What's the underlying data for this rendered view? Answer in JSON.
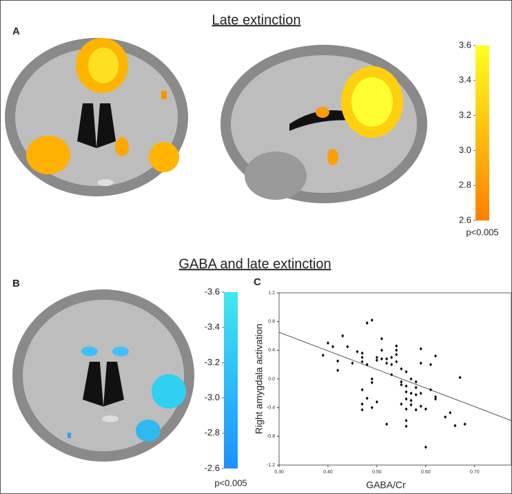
{
  "panel_a": {
    "label": "A",
    "title": "Late extinction",
    "colorbar": {
      "range": [
        2.6,
        3.6
      ],
      "colors": [
        "#ff7f00",
        "#ffff20"
      ],
      "ticks": [
        2.6,
        2.8,
        {
          "value": 3,
          "label": "3.0"
        },
        3.2,
        3.4,
        3.6
      ],
      "note": "p<0.005"
    }
  },
  "panel_b": {
    "label": "B",
    "title": "GABA and late extinction",
    "colorbar": {
      "range": [
        -2.6,
        -3.6
      ],
      "colors": [
        "#1e90ff",
        "#40e8f0"
      ],
      "ticks": [
        -2.6,
        -2.8,
        {
          "value": -3,
          "label": "-3.0"
        },
        -3.2,
        -3.4,
        -3.6
      ],
      "note": "p<0.005"
    }
  },
  "panel_c": {
    "label": "C"
  },
  "chart_data": {
    "type": "scatter",
    "x_label": "GABA/Cr",
    "y_label": "Right amygdala activation",
    "xlim": [
      0.3,
      0.775
    ],
    "ylim": [
      -1.2,
      1.2
    ],
    "xticks": [
      {
        "value": 0.3,
        "label": "0.30"
      },
      {
        "value": 0.4,
        "label": "0.40"
      },
      {
        "value": 0.5,
        "label": "0.50"
      },
      {
        "value": 0.6,
        "label": "0.60"
      },
      {
        "value": 0.7,
        "label": "0.70"
      }
    ],
    "yticks": [
      -1.2,
      -0.8,
      -0.4,
      {
        "value": 0,
        "label": "0.0"
      },
      0.4,
      0.8,
      1.2
    ],
    "color": "#000000",
    "fit_line": {
      "x": [
        0.3,
        0.775
      ],
      "y": [
        0.65,
        -0.58
      ]
    },
    "x": [
      0.39,
      0.4,
      0.41,
      0.42,
      0.42,
      0.43,
      0.44,
      0.45,
      0.46,
      0.47,
      0.47,
      0.47,
      0.48,
      0.48,
      0.49,
      0.49,
      0.49,
      0.47,
      0.47,
      0.47,
      0.48,
      0.49,
      0.5,
      0.5,
      0.5,
      0.51,
      0.51,
      0.51,
      0.52,
      0.52,
      0.52,
      0.53,
      0.53,
      0.53,
      0.54,
      0.54,
      0.54,
      0.54,
      0.55,
      0.55,
      0.55,
      0.55,
      0.56,
      0.56,
      0.56,
      0.56,
      0.56,
      0.56,
      0.56,
      0.57,
      0.57,
      0.57,
      0.57,
      0.58,
      0.58,
      0.58,
      0.58,
      0.59,
      0.59,
      0.59,
      0.59,
      0.6,
      0.6,
      0.61,
      0.61,
      0.62,
      0.62,
      0.62,
      0.64,
      0.65,
      0.66,
      0.67,
      0.68
    ],
    "y": [
      0.33,
      0.5,
      0.45,
      0.12,
      0.25,
      0.6,
      0.45,
      0.22,
      0.38,
      0.24,
      0.3,
      0.36,
      0.2,
      0.78,
      0.82,
      0.0,
      -0.05,
      -0.15,
      -0.35,
      -0.43,
      -0.27,
      -0.4,
      0.3,
      0.26,
      -0.32,
      0.28,
      0.56,
      0.4,
      0.28,
      0.22,
      -0.63,
      0.2,
      0.3,
      0.06,
      0.4,
      0.46,
      0.34,
      0.24,
      0.14,
      -0.04,
      -0.08,
      -0.35,
      0.1,
      -0.1,
      -0.18,
      -0.28,
      -0.42,
      -0.58,
      -0.66,
      0.0,
      -0.2,
      -0.3,
      -0.36,
      -0.04,
      -0.12,
      -0.22,
      -0.43,
      0.42,
      0.22,
      -0.2,
      -0.38,
      -0.95,
      -0.42,
      0.2,
      -0.15,
      0.32,
      -0.25,
      -0.28,
      -0.53,
      -0.47,
      -0.65,
      0.02,
      -0.63
    ]
  }
}
